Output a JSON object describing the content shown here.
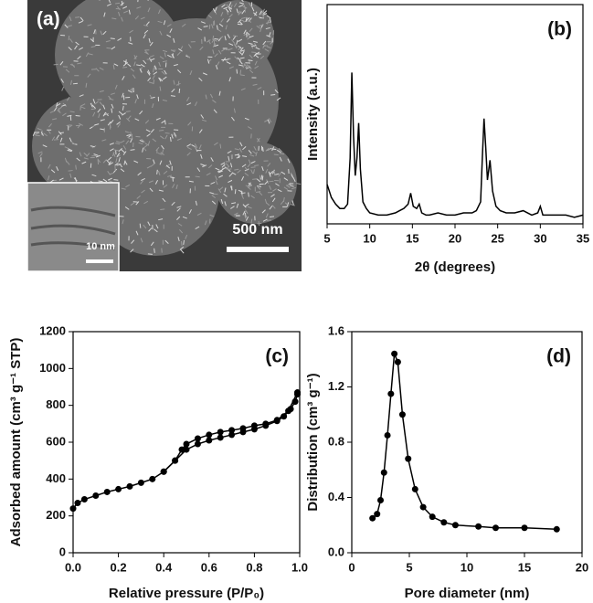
{
  "image_panel": {
    "panel_label": "(a)",
    "scale_bar": "500 nm",
    "inset_scale_bar": "10 nm"
  },
  "chart_data": [
    {
      "type": "line",
      "panel_label": "(b)",
      "x_label": "2θ (degrees)",
      "y_label": "Intensity (a.u.)",
      "xlim": [
        5,
        35
      ],
      "xticks": [
        5,
        10,
        15,
        20,
        25,
        30,
        35
      ],
      "ylim": [
        0,
        100
      ],
      "markers": false,
      "series": [
        {
          "color": "#000000",
          "x": [
            5,
            5.5,
            6,
            6.5,
            7,
            7.4,
            7.7,
            7.9,
            8.1,
            8.3,
            8.5,
            8.7,
            8.9,
            9.2,
            9.6,
            10,
            11,
            12,
            13,
            13.5,
            14,
            14.5,
            14.8,
            15.1,
            15.5,
            15.8,
            16.1,
            16.6,
            17,
            18,
            19,
            20,
            21,
            22,
            22.5,
            23,
            23.2,
            23.4,
            23.6,
            23.8,
            24.1,
            24.4,
            24.8,
            25.3,
            26,
            27,
            28,
            29,
            29.7,
            30,
            30.3,
            31,
            32,
            33,
            34,
            35
          ],
          "values": [
            18,
            12,
            9,
            7,
            7,
            9,
            30,
            69,
            40,
            22,
            30,
            46,
            25,
            10,
            7,
            5,
            4,
            4,
            5,
            6,
            7,
            9,
            14,
            8,
            7,
            9,
            5,
            4,
            4,
            5,
            4,
            4,
            5,
            5,
            6,
            10,
            30,
            48,
            35,
            20,
            29,
            15,
            8,
            6,
            5,
            5,
            6,
            4,
            5,
            8,
            4,
            4,
            4,
            4,
            3,
            4
          ]
        }
      ]
    },
    {
      "type": "line",
      "panel_label": "(c)",
      "x_label": "Relative pressure (P/P₀)",
      "y_label": "Adsorbed amount (cm³ g⁻¹ STP)",
      "xlim": [
        0,
        1
      ],
      "xticks": [
        {
          "value": 0,
          "label": "0.0"
        },
        0.2,
        0.4,
        0.6,
        0.8,
        {
          "value": 1,
          "label": "1.0"
        }
      ],
      "ylim": [
        0,
        1200
      ],
      "yticks": [
        0,
        200,
        400,
        600,
        800,
        1000,
        1200
      ],
      "markers": true,
      "series": [
        {
          "color": "#000000",
          "x": [
            0,
            0.02,
            0.05,
            0.1,
            0.15,
            0.2,
            0.25,
            0.3,
            0.35,
            0.4,
            0.45,
            0.5,
            0.55,
            0.6,
            0.65,
            0.7,
            0.75,
            0.8,
            0.85,
            0.9,
            0.93,
            0.96,
            0.98,
            0.99
          ],
          "values": [
            240,
            270,
            290,
            310,
            330,
            345,
            360,
            380,
            400,
            440,
            500,
            560,
            590,
            610,
            625,
            640,
            655,
            670,
            690,
            715,
            740,
            780,
            820,
            860
          ]
        },
        {
          "color": "#000000",
          "x": [
            0.99,
            0.95,
            0.9,
            0.85,
            0.8,
            0.75,
            0.7,
            0.65,
            0.6,
            0.55,
            0.5,
            0.48,
            0.45,
            0.4
          ],
          "values": [
            870,
            770,
            720,
            700,
            690,
            675,
            665,
            655,
            640,
            620,
            590,
            560,
            500,
            440
          ]
        }
      ]
    },
    {
      "type": "line",
      "panel_label": "(d)",
      "x_label": "Pore diameter (nm)",
      "y_label": "Distribution (cm³ g⁻¹)",
      "xlim": [
        0,
        20
      ],
      "xticks": [
        0,
        5,
        10,
        15,
        20
      ],
      "ylim": [
        0,
        1.6
      ],
      "yticks": [
        {
          "value": 0,
          "label": "0.0"
        },
        0.4,
        0.8,
        1.2,
        1.6
      ],
      "markers": true,
      "series": [
        {
          "color": "#000000",
          "x": [
            1.8,
            2.2,
            2.5,
            2.8,
            3.1,
            3.4,
            3.7,
            4.0,
            4.4,
            4.9,
            5.5,
            6.2,
            7,
            8,
            9,
            11,
            12.5,
            15,
            17.8
          ],
          "values": [
            0.25,
            0.28,
            0.38,
            0.58,
            0.85,
            1.15,
            1.44,
            1.38,
            1.0,
            0.68,
            0.46,
            0.33,
            0.26,
            0.22,
            0.2,
            0.19,
            0.18,
            0.18,
            0.17
          ]
        }
      ]
    }
  ]
}
